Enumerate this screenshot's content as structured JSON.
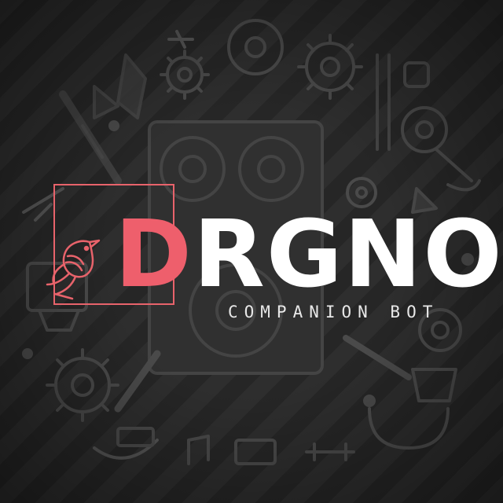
{
  "logo": {
    "accent_letter": "D",
    "rest_letters": "RGNO",
    "tagline": "COMPANION BOT",
    "accent_color": "#ee5f6c",
    "text_color": "#ffffff"
  },
  "background": {
    "style": "dark gray diagonal stripes with faint mechanical/gadget doodles",
    "stripe_colors": [
      "#2e2e2e",
      "#262626"
    ],
    "icons": [
      "gear-icon",
      "speaker-icon",
      "vinyl-record-icon",
      "pen-icon",
      "crystal-icon",
      "plug-icon",
      "gamepad-icon"
    ]
  }
}
